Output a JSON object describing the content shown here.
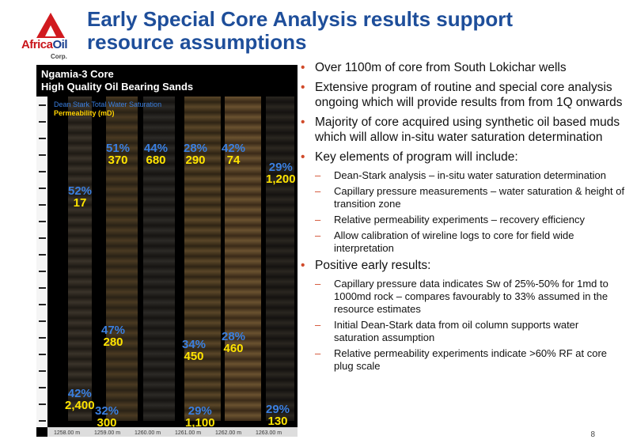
{
  "title": "Early Special Core Analysis results support resource assumptions",
  "logo": {
    "text_part1": "Africa",
    "text_part2": "Oil",
    "corp": "Corp."
  },
  "photo": {
    "title_line1": "Ngamia-3 Core",
    "title_line2": "High Quality Oil Bearing  Sands",
    "legend_sw": "Dean Stark Total Water Saturation",
    "legend_perm": "Permeability (mD)",
    "footer_labels": [
      "1258.00 m",
      "1259.00 m",
      "1260.00 m",
      "1261.00 m",
      "1262.00 m",
      "1263.00 m"
    ],
    "labels": [
      {
        "sw": "51%",
        "k": "370"
      },
      {
        "sw": "44%",
        "k": "680"
      },
      {
        "sw": "28%",
        "k": "290"
      },
      {
        "sw": "42%",
        "k": "74"
      },
      {
        "sw": "29%",
        "k": "1,200"
      },
      {
        "sw": "52%",
        "k": "17"
      },
      {
        "sw": "47%",
        "k": "280"
      },
      {
        "sw": "34%",
        "k": "450"
      },
      {
        "sw": "28%",
        "k": "460"
      },
      {
        "sw": "42%",
        "k": "2,400"
      },
      {
        "sw": "32%",
        "k": "300"
      },
      {
        "sw": "29%",
        "k": "1,100"
      },
      {
        "sw": "29%",
        "k": "130"
      }
    ]
  },
  "bullets": [
    {
      "text": "Over 1100m of core from South Lokichar wells",
      "subs": []
    },
    {
      "text": "Extensive program of routine and special core analysis ongoing which will provide results from from 1Q onwards",
      "subs": []
    },
    {
      "text": "Majority of core acquired using synthetic oil based muds which will allow in-situ water saturation determination",
      "subs": []
    },
    {
      "text": "Key elements of program will include:",
      "subs": [
        "Dean-Stark analysis – in-situ water saturation determination",
        "Capillary pressure measurements – water saturation & height of transition zone",
        "Relative permeability experiments – recovery efficiency",
        "Allow calibration of wireline logs to core for field wide interpretation"
      ]
    },
    {
      "text": "Positive early results:",
      "subs": [
        "Capillary pressure data indicates Sw of 25%-50% for 1md to 1000md rock – compares favourably to 33% assumed in the resource estimates",
        "Initial Dean-Stark data from oil column supports water saturation assumption",
        "Relative permeability experiments indicate >60% RF at core plug scale"
      ]
    }
  ],
  "page_number": "8"
}
